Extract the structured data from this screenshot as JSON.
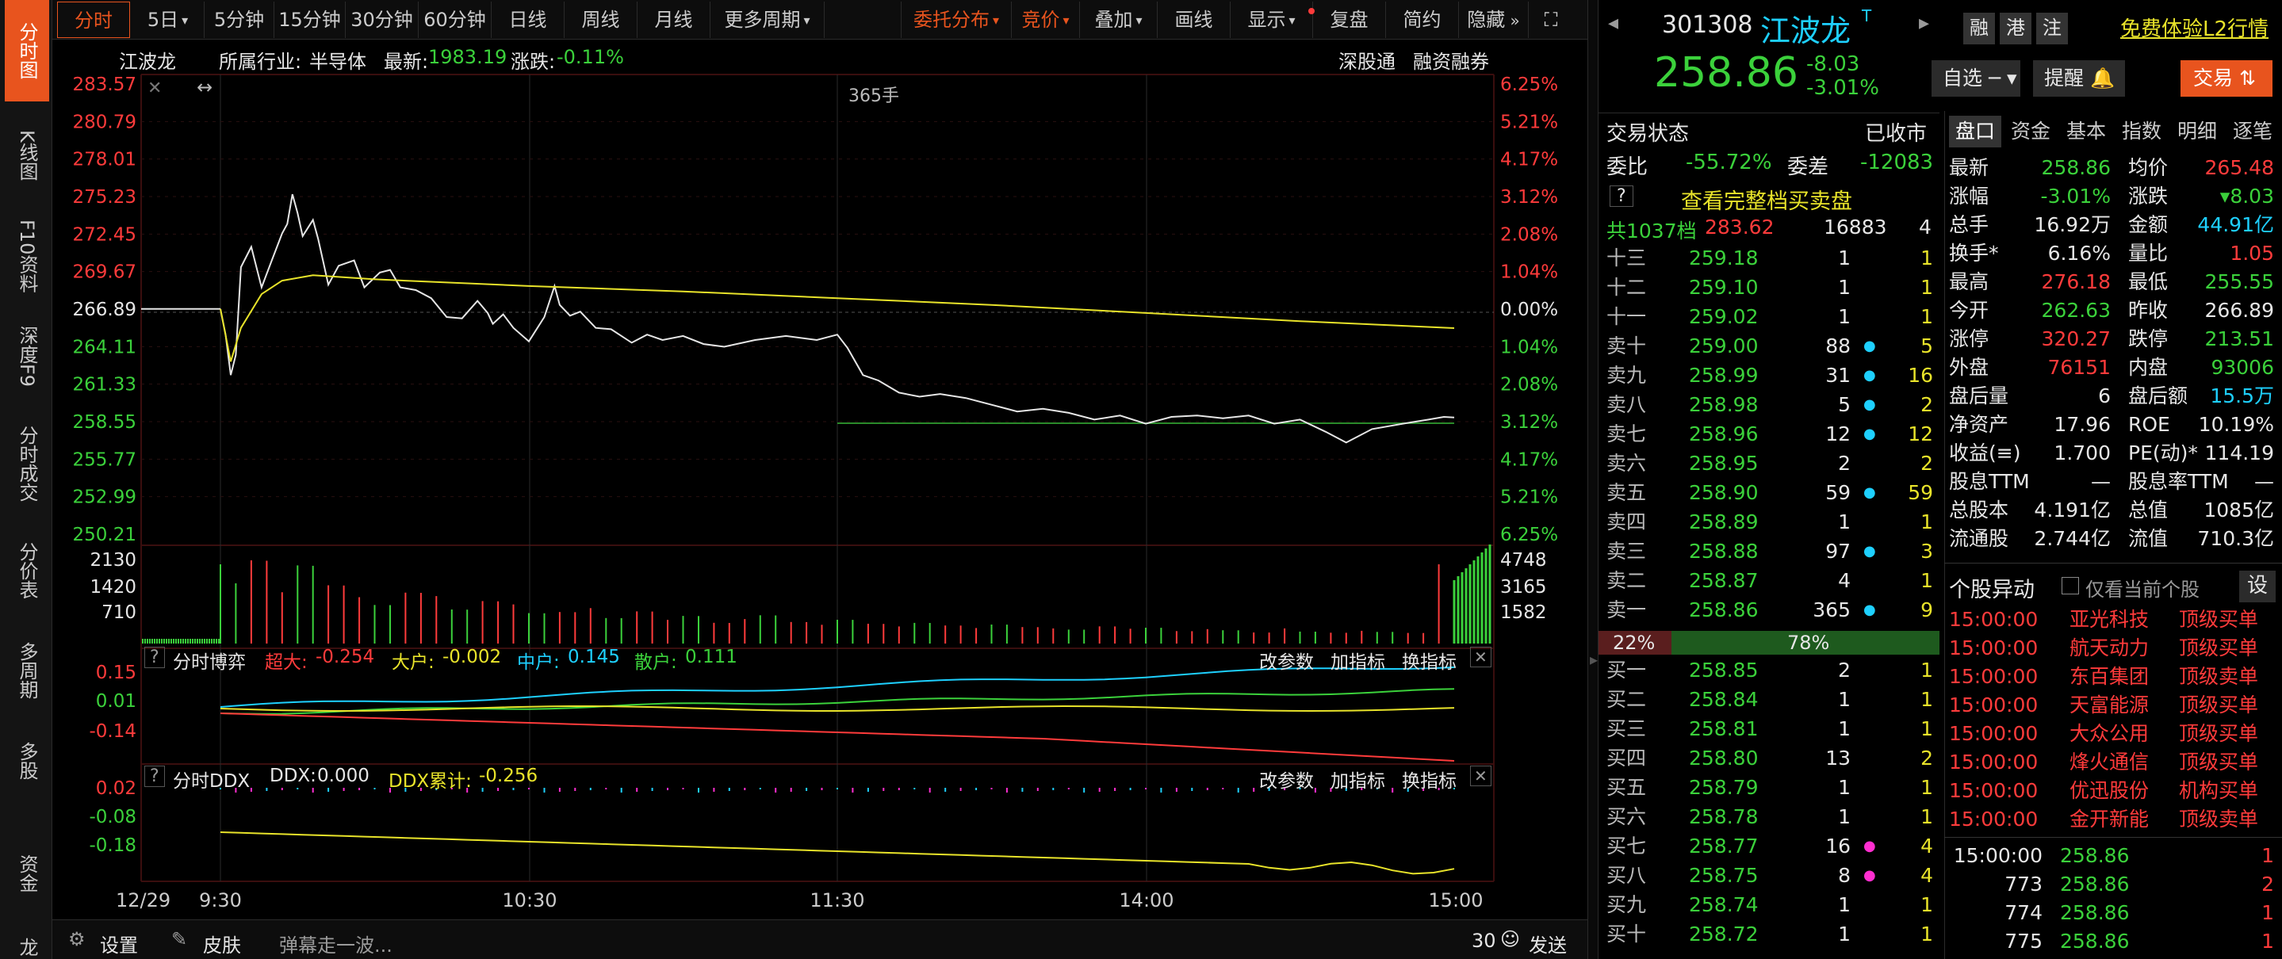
{
  "left_nav": [
    "分时图",
    "K线图",
    "F10资料",
    "深度F9",
    "分时成交",
    "分价表",
    "多周期",
    "多股",
    "资金",
    "龙"
  ],
  "toolbar": {
    "items": [
      "分时",
      "5日",
      "5分钟",
      "15分钟",
      "30分钟",
      "60分钟",
      "日线",
      "周线",
      "月线",
      "更多周期"
    ],
    "right_items": [
      "委托分布",
      "竞价",
      "叠加",
      "画线",
      "显示",
      "复盘",
      "简约",
      "隐藏"
    ]
  },
  "chart_header": {
    "name": "江波龙",
    "industry_label": "所属行业:",
    "industry": "半导体",
    "latest_label": "最新:",
    "latest": "1983.19",
    "change_label": "涨跌:",
    "change": "-0.11%",
    "right_links": [
      "深股通",
      "融资融券"
    ],
    "vol_note": "365手"
  },
  "price_axis": {
    "left": [
      "283.57",
      "280.79",
      "278.01",
      "275.23",
      "272.45",
      "269.67",
      "266.89",
      "264.11",
      "261.33",
      "258.55",
      "255.77",
      "252.99",
      "250.21"
    ],
    "right": [
      "6.25%",
      "5.21%",
      "4.17%",
      "3.12%",
      "2.08%",
      "1.04%",
      "0.00%",
      "1.04%",
      "2.08%",
      "3.12%",
      "4.17%",
      "5.21%",
      "6.25%"
    ]
  },
  "volume_axis": {
    "left": [
      "2130",
      "1420",
      "710"
    ],
    "right": [
      "4748",
      "3165",
      "1582"
    ]
  },
  "panel_game": {
    "title": "分时博弈",
    "labels": [
      "超大:",
      "大户:",
      "中户:",
      "散户:"
    ],
    "values": [
      "-0.254",
      "-0.002",
      "0.145",
      "0.111"
    ],
    "axis": [
      "0.15",
      "0.01",
      "-0.14"
    ],
    "buttons": [
      "改参数",
      "加指标",
      "换指标"
    ]
  },
  "panel_ddx": {
    "title": "分时DDX",
    "labels": [
      "DDX:",
      "DDX累计:"
    ],
    "values": [
      "0.000",
      "-0.256"
    ],
    "axis": [
      "0.02",
      "-0.08",
      "-0.18"
    ],
    "buttons": [
      "改参数",
      "加指标",
      " 换指标"
    ]
  },
  "time_axis": [
    "12/29",
    "9:30",
    "10:30",
    "11:30",
    "14:00",
    "15:00"
  ],
  "bottom_bar": {
    "settings": "设置",
    "skin": "皮肤",
    "danmaku_placeholder": "弹幕走一波...",
    "count": "30",
    "send": "发送"
  },
  "stock": {
    "code": "301308",
    "name": "江波龙",
    "badges": [
      "融",
      "港",
      "注"
    ],
    "l2_link": "免费体验L2行情",
    "price": "258.86",
    "change": "-8.03",
    "change_pct": "-3.01%",
    "watch": "自选",
    "remind": "提醒",
    "trade": "交易"
  },
  "status": {
    "label": "交易状态",
    "value": "已收市",
    "weibi_label": "委比",
    "weibi": "-55.72%",
    "weicha_label": "委差",
    "weicha": "-12083",
    "full_book": "查看完整档买卖盘",
    "total_label": "共1037档",
    "total_price": "283.62",
    "total_vol": "16883",
    "total_cnt": "4"
  },
  "asks": [
    {
      "label": "十三",
      "price": "259.18",
      "vol": "1",
      "dot": "",
      "cnt": "1"
    },
    {
      "label": "十二",
      "price": "259.10",
      "vol": "1",
      "dot": "",
      "cnt": "1"
    },
    {
      "label": "十一",
      "price": "259.02",
      "vol": "1",
      "dot": "",
      "cnt": "1"
    },
    {
      "label": "卖十",
      "price": "259.00",
      "vol": "88",
      "dot": "cyan",
      "cnt": "5"
    },
    {
      "label": "卖九",
      "price": "258.99",
      "vol": "31",
      "dot": "cyan",
      "cnt": "16"
    },
    {
      "label": "卖八",
      "price": "258.98",
      "vol": "5",
      "dot": "cyan",
      "cnt": "2"
    },
    {
      "label": "卖七",
      "price": "258.96",
      "vol": "12",
      "dot": "cyan",
      "cnt": "12"
    },
    {
      "label": "卖六",
      "price": "258.95",
      "vol": "2",
      "dot": "",
      "cnt": "2"
    },
    {
      "label": "卖五",
      "price": "258.90",
      "vol": "59",
      "dot": "cyan",
      "cnt": "59"
    },
    {
      "label": "卖四",
      "price": "258.89",
      "vol": "1",
      "dot": "",
      "cnt": "1"
    },
    {
      "label": "卖三",
      "price": "258.88",
      "vol": "97",
      "dot": "cyan",
      "cnt": "3"
    },
    {
      "label": "卖二",
      "price": "258.87",
      "vol": "4",
      "dot": "",
      "cnt": "1"
    },
    {
      "label": "卖一",
      "price": "258.86",
      "vol": "365",
      "dot": "cyan",
      "cnt": "9"
    }
  ],
  "ratio": {
    "buy": "22%",
    "sell": "78%"
  },
  "bids": [
    {
      "label": "买一",
      "price": "258.85",
      "vol": "2",
      "dot": "",
      "cnt": "1"
    },
    {
      "label": "买二",
      "price": "258.84",
      "vol": "1",
      "dot": "",
      "cnt": "1"
    },
    {
      "label": "买三",
      "price": "258.81",
      "vol": "1",
      "dot": "",
      "cnt": "1"
    },
    {
      "label": "买四",
      "price": "258.80",
      "vol": "13",
      "dot": "",
      "cnt": "2"
    },
    {
      "label": "买五",
      "price": "258.79",
      "vol": "1",
      "dot": "",
      "cnt": "1"
    },
    {
      "label": "买六",
      "price": "258.78",
      "vol": "1",
      "dot": "",
      "cnt": "1"
    },
    {
      "label": "买七",
      "price": "258.77",
      "vol": "16",
      "dot": "mag",
      "cnt": "4"
    },
    {
      "label": "买八",
      "price": "258.75",
      "vol": "8",
      "dot": "mag",
      "cnt": "4"
    },
    {
      "label": "买九",
      "price": "258.74",
      "vol": "1",
      "dot": "",
      "cnt": "1"
    },
    {
      "label": "买十",
      "price": "258.72",
      "vol": "1",
      "dot": "",
      "cnt": "1"
    }
  ],
  "info_tabs": [
    "盘口",
    "资金",
    "基本",
    "指数",
    "明细",
    "逐笔"
  ],
  "quote": [
    [
      "最新",
      "258.86",
      "grn",
      "均价",
      "265.48",
      "red"
    ],
    [
      "涨幅",
      "-3.01%",
      "grn",
      "涨跌",
      "▾8.03",
      "grn"
    ],
    [
      "总手",
      "16.92万",
      "wht",
      "金额",
      "44.91亿",
      "cyan"
    ],
    [
      "换手*",
      "6.16%",
      "wht",
      "量比",
      "1.05",
      "red"
    ],
    [
      "最高",
      "276.18",
      "red",
      "最低",
      "255.55",
      "grn"
    ],
    [
      "今开",
      "262.63",
      "grn",
      "昨收",
      "266.89",
      "wht"
    ],
    [
      "涨停",
      "320.27",
      "red",
      "跌停",
      "213.51",
      "grn"
    ],
    [
      "外盘",
      "76151",
      "red",
      "内盘",
      "93006",
      "grn"
    ],
    [
      "盘后量",
      "6",
      "wht",
      "盘后额",
      "15.5万",
      "cyan"
    ],
    [
      "净资产",
      "17.96",
      "wht",
      "ROE",
      "10.19%",
      "wht"
    ],
    [
      "收益(≡)",
      "1.700",
      "wht",
      "PE(动)*",
      "114.19",
      "wht"
    ],
    [
      "股息TTM",
      "—",
      "wht",
      "股息率TTM",
      "—",
      "wht"
    ],
    [
      "总股本",
      "4.191亿",
      "wht",
      "总值",
      "1085亿",
      "wht"
    ],
    [
      "流通股",
      "2.744亿",
      "wht",
      "流值",
      "710.3亿",
      "wht"
    ]
  ],
  "movers": {
    "title": "个股异动",
    "checkbox": "仅看当前个股",
    "settings": "设",
    "rows": [
      [
        "15:00:00",
        "亚光科技",
        "顶级买单"
      ],
      [
        "15:00:00",
        "航天动力",
        "顶级买单"
      ],
      [
        "15:00:00",
        "东百集团",
        "顶级卖单"
      ],
      [
        "15:00:00",
        "天富能源",
        "顶级买单"
      ],
      [
        "15:00:00",
        "大众公用",
        "顶级买单"
      ],
      [
        "15:00:00",
        "烽火通信",
        "顶级买单"
      ],
      [
        "15:00:00",
        "优迅股份",
        "机构买单"
      ],
      [
        "15:00:00",
        "金开新能",
        "顶级卖单"
      ]
    ]
  },
  "ticks": [
    [
      "15:00:00",
      "258.86",
      "1"
    ],
    [
      "773",
      "258.86",
      "2"
    ],
    [
      "774",
      "258.86",
      "1"
    ],
    [
      "775",
      "258.86",
      "1"
    ]
  ],
  "colors": {
    "accent": "#e8541e",
    "up": "#ff3b3b",
    "down": "#3bd13b",
    "avg": "#e8e32a",
    "price": "#e6e6e6",
    "cyan": "#1ed0ff"
  }
}
